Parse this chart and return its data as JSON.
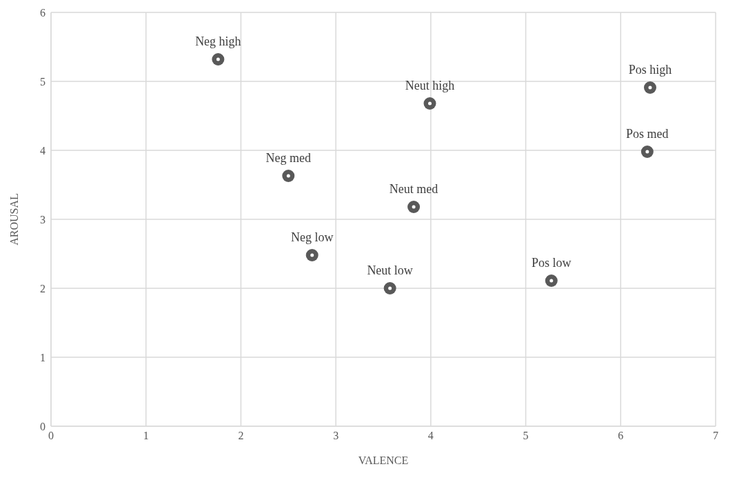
{
  "chart_data": {
    "type": "scatter",
    "xlabel": "VALENCE",
    "ylabel": "AROUSAL",
    "x": [
      1.76,
      2.5,
      2.75,
      3.99,
      3.82,
      3.57,
      6.31,
      6.28,
      5.27
    ],
    "series": [
      {
        "color": "#595959",
        "values": [
          5.32,
          3.63,
          2.48,
          4.68,
          3.18,
          2.0,
          4.91,
          3.98,
          2.11
        ]
      }
    ],
    "xlim": [
      0,
      7
    ],
    "xticks": [
      0,
      1,
      2,
      3,
      4,
      5,
      6,
      7
    ],
    "ylim": [
      0,
      6
    ],
    "yticks": [
      0,
      1,
      2,
      3,
      4,
      5,
      6
    ],
    "grid": true,
    "legend": false,
    "marker": "circle",
    "annotations": [
      {
        "text": "Neg high",
        "x": 1.76,
        "y": 5.32
      },
      {
        "text": "Neg med",
        "x": 2.5,
        "y": 3.63
      },
      {
        "text": "Neg low",
        "x": 2.75,
        "y": 2.48
      },
      {
        "text": "Neut high",
        "x": 3.99,
        "y": 4.68
      },
      {
        "text": "Neut med",
        "x": 3.82,
        "y": 3.18
      },
      {
        "text": "Neut low",
        "x": 3.57,
        "y": 2.0
      },
      {
        "text": "Pos high",
        "x": 6.31,
        "y": 4.91
      },
      {
        "text": "Pos med",
        "x": 6.28,
        "y": 3.98
      },
      {
        "text": "Pos low",
        "x": 5.27,
        "y": 2.11
      }
    ]
  }
}
